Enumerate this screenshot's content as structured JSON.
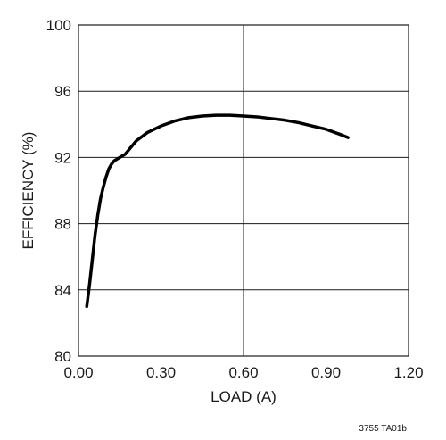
{
  "chart_data": {
    "type": "line",
    "xlabel": "LOAD (A)",
    "ylabel": "EFFICIENCY (%)",
    "xlim": [
      0,
      1.2
    ],
    "ylim": [
      80,
      100
    ],
    "x_ticks": [
      0,
      0.3,
      0.6,
      0.9,
      1.2
    ],
    "x_tick_labels": [
      "0.00",
      "0.30",
      "0.60",
      "0.90",
      "1.20"
    ],
    "y_ticks": [
      80,
      84,
      88,
      92,
      96,
      100
    ],
    "y_tick_labels": [
      "80",
      "84",
      "88",
      "92",
      "96",
      "100"
    ],
    "grid": true,
    "series": [
      {
        "x": [
          0.03,
          0.04,
          0.05,
          0.06,
          0.07,
          0.08,
          0.09,
          0.1,
          0.11,
          0.12,
          0.13,
          0.14,
          0.15,
          0.17,
          0.19,
          0.21,
          0.25,
          0.3,
          0.35,
          0.4,
          0.45,
          0.5,
          0.55,
          0.6,
          0.65,
          0.7,
          0.75,
          0.8,
          0.85,
          0.9,
          0.95,
          0.98
        ],
        "y": [
          83.0,
          84.3,
          85.8,
          87.3,
          88.5,
          89.5,
          90.2,
          90.8,
          91.3,
          91.6,
          91.8,
          91.9,
          92.0,
          92.2,
          92.6,
          93.0,
          93.5,
          93.9,
          94.2,
          94.4,
          94.5,
          94.55,
          94.55,
          94.5,
          94.45,
          94.35,
          94.25,
          94.1,
          93.9,
          93.7,
          93.4,
          93.2
        ]
      }
    ]
  },
  "footnote": "3755 TA01b"
}
